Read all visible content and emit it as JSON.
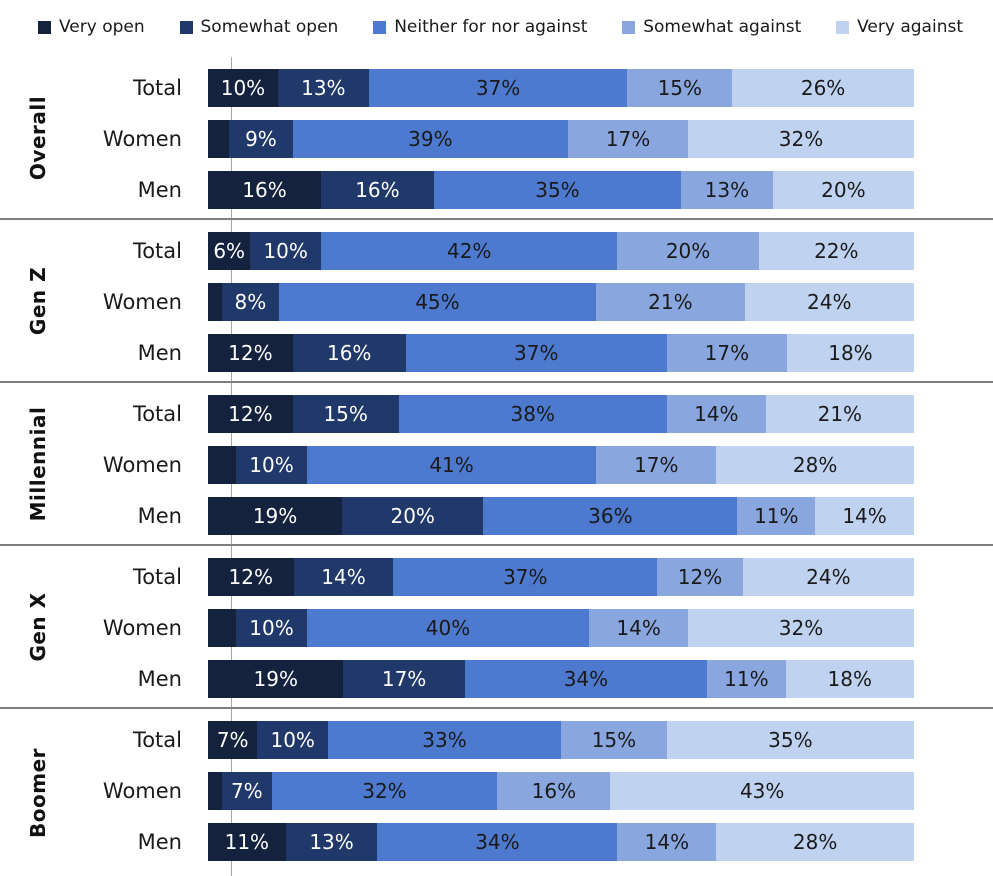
{
  "legend": {
    "items": [
      {
        "label": "Very open",
        "color": "#14223E"
      },
      {
        "label": "Somewhat open",
        "color": "#21386A"
      },
      {
        "label": "Neither for nor against",
        "color": "#4D79CE"
      },
      {
        "label": "Somewhat against",
        "color": "#89A7DE"
      },
      {
        "label": "Very against",
        "color": "#BFD2F0"
      }
    ]
  },
  "chart_data": {
    "type": "bar",
    "variant": "horizontal-100-stacked",
    "series_names": [
      "Very open",
      "Somewhat open",
      "Neither for nor against",
      "Somewhat against",
      "Very against"
    ],
    "series_slugs": [
      "very-open",
      "somewhat-open",
      "neither-for-nor-against",
      "somewhat-against",
      "very-against"
    ],
    "colors": [
      "#14223E",
      "#21386A",
      "#4D79CE",
      "#89A7DE",
      "#BFD2F0"
    ],
    "label_text_colors": [
      "#ffffff",
      "#ffffff",
      "#1a1a1a",
      "#1a1a1a",
      "#1a1a1a"
    ],
    "xlim": [
      0,
      100
    ],
    "legend_position": "top",
    "grid": false,
    "groups": [
      {
        "label": "Overall",
        "rows": [
          {
            "label": "Total",
            "values": [
              10,
              13,
              37,
              15,
              26
            ],
            "display": [
              "10%",
              "13%",
              "37%",
              "15%",
              "26%"
            ]
          },
          {
            "label": "Women",
            "values": [
              3,
              9,
              39,
              17,
              32
            ],
            "display": [
              "",
              "9%",
              "39%",
              "17%",
              "32%"
            ]
          },
          {
            "label": "Men",
            "values": [
              16,
              16,
              35,
              13,
              20
            ],
            "display": [
              "16%",
              "16%",
              "35%",
              "13%",
              "20%"
            ]
          }
        ]
      },
      {
        "label": "Gen Z",
        "rows": [
          {
            "label": "Total",
            "values": [
              6,
              10,
              42,
              20,
              22
            ],
            "display": [
              "6%",
              "10%",
              "42%",
              "20%",
              "22%"
            ]
          },
          {
            "label": "Women",
            "values": [
              2,
              8,
              45,
              21,
              24
            ],
            "display": [
              "",
              "8%",
              "45%",
              "21%",
              "24%"
            ]
          },
          {
            "label": "Men",
            "values": [
              12,
              16,
              37,
              17,
              18
            ],
            "display": [
              "12%",
              "16%",
              "37%",
              "17%",
              "18%"
            ]
          }
        ]
      },
      {
        "label": "Millennial",
        "rows": [
          {
            "label": "Total",
            "values": [
              12,
              15,
              38,
              14,
              21
            ],
            "display": [
              "12%",
              "15%",
              "38%",
              "14%",
              "21%"
            ]
          },
          {
            "label": "Women",
            "values": [
              4,
              10,
              41,
              17,
              28
            ],
            "display": [
              "",
              "10%",
              "41%",
              "17%",
              "28%"
            ]
          },
          {
            "label": "Men",
            "values": [
              19,
              20,
              36,
              11,
              14
            ],
            "display": [
              "19%",
              "20%",
              "36%",
              "11%",
              "14%"
            ]
          }
        ]
      },
      {
        "label": "Gen X",
        "rows": [
          {
            "label": "Total",
            "values": [
              12,
              14,
              37,
              12,
              24
            ],
            "display": [
              "12%",
              "14%",
              "37%",
              "12%",
              "24%"
            ]
          },
          {
            "label": "Women",
            "values": [
              4,
              10,
              40,
              14,
              32
            ],
            "display": [
              "",
              "10%",
              "40%",
              "14%",
              "32%"
            ]
          },
          {
            "label": "Men",
            "values": [
              19,
              17,
              34,
              11,
              18
            ],
            "display": [
              "19%",
              "17%",
              "34%",
              "11%",
              "18%"
            ]
          }
        ]
      },
      {
        "label": "Boomer",
        "rows": [
          {
            "label": "Total",
            "values": [
              7,
              10,
              33,
              15,
              35
            ],
            "display": [
              "7%",
              "10%",
              "33%",
              "15%",
              "35%"
            ]
          },
          {
            "label": "Women",
            "values": [
              2,
              7,
              32,
              16,
              43
            ],
            "display": [
              "",
              "7%",
              "32%",
              "16%",
              "43%"
            ]
          },
          {
            "label": "Men",
            "values": [
              11,
              13,
              34,
              14,
              28
            ],
            "display": [
              "11%",
              "13%",
              "34%",
              "14%",
              "28%"
            ]
          }
        ]
      }
    ]
  },
  "style": {
    "divider_color": "#7f7f7f",
    "axis_line_color": "#a6a6a6",
    "background": "#ffffff",
    "text_color": "#1a1a1a"
  }
}
